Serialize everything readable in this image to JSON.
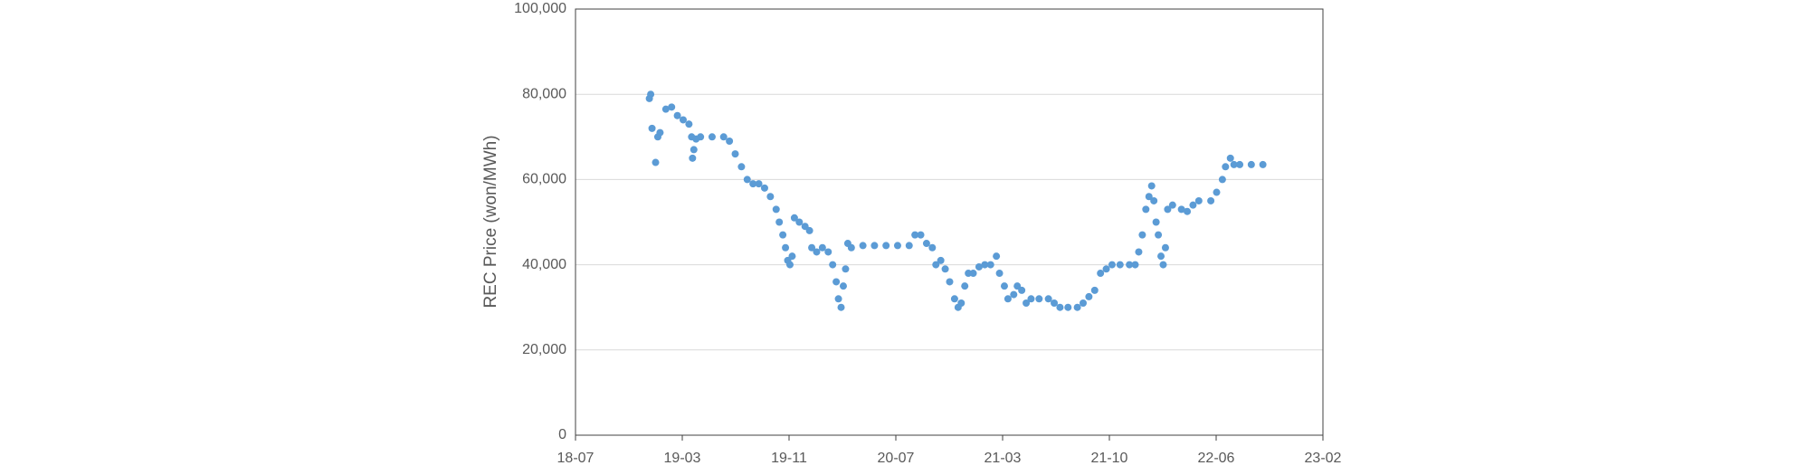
{
  "chart_data": {
    "type": "scatter",
    "y_label": "REC Price (won/MWh)",
    "color": "#5b9bd5",
    "grid": true,
    "xlim": [
      43300,
      44980
    ],
    "xticks": [
      {
        "value": 43300,
        "label": "18-07"
      },
      {
        "value": 43540,
        "label": "19-03"
      },
      {
        "value": 43780,
        "label": "19-11"
      },
      {
        "value": 44020,
        "label": "20-07"
      },
      {
        "value": 44260,
        "label": "21-03"
      },
      {
        "value": 44500,
        "label": "21-10"
      },
      {
        "value": 44740,
        "label": "22-06"
      },
      {
        "value": 44980,
        "label": "23-02"
      }
    ],
    "ylim": [
      0,
      100000
    ],
    "yticks": [
      0,
      {
        "value": 20000,
        "label": "20,000"
      },
      {
        "value": 40000,
        "label": "40,000"
      },
      {
        "value": 60000,
        "label": "60,000"
      },
      {
        "value": 80000,
        "label": "80,000"
      },
      {
        "value": 100000,
        "label": "100,000"
      }
    ],
    "x": [
      43466,
      43469,
      43472,
      43480,
      43485,
      43490,
      43503,
      43516,
      43529,
      43542,
      43555,
      43561,
      43563,
      43566,
      43571,
      43581,
      43607,
      43633,
      43646,
      43659,
      43673,
      43686,
      43699,
      43712,
      43725,
      43738,
      43751,
      43758,
      43766,
      43772,
      43777,
      43782,
      43787,
      43792,
      43803,
      43816,
      43826,
      43831,
      43842,
      43855,
      43868,
      43878,
      43886,
      43891,
      43897,
      43902,
      43907,
      43912,
      43920,
      43946,
      43972,
      43998,
      44024,
      44050,
      44063,
      44076,
      44089,
      44102,
      44110,
      44121,
      44131,
      44141,
      44152,
      44160,
      44167,
      44175,
      44183,
      44194,
      44207,
      44220,
      44233,
      44246,
      44253,
      44264,
      44272,
      44285,
      44293,
      44303,
      44313,
      44324,
      44342,
      44363,
      44376,
      44389,
      44407,
      44428,
      44441,
      44454,
      44467,
      44480,
      44493,
      44506,
      44524,
      44545,
      44558,
      44566,
      44574,
      44582,
      44589,
      44595,
      44600,
      44605,
      44610,
      44616,
      44621,
      44626,
      44631,
      44642,
      44662,
      44675,
      44688,
      44701,
      44728,
      44741,
      44754,
      44761,
      44772,
      44780,
      44793,
      44819,
      44845
    ],
    "values": [
      79000,
      80000,
      72000,
      64000,
      70000,
      71000,
      76500,
      77000,
      75000,
      74000,
      73000,
      70000,
      65000,
      67000,
      69500,
      70000,
      70000,
      70000,
      69000,
      66000,
      63000,
      60000,
      59000,
      59000,
      58000,
      56000,
      53000,
      50000,
      47000,
      44000,
      41000,
      40000,
      42000,
      51000,
      50000,
      49000,
      48000,
      44000,
      43000,
      44000,
      43000,
      40000,
      36000,
      32000,
      30000,
      35000,
      39000,
      45000,
      44000,
      44500,
      44500,
      44500,
      44500,
      44500,
      47000,
      47000,
      45000,
      44000,
      40000,
      41000,
      39000,
      36000,
      32000,
      30000,
      31000,
      35000,
      38000,
      38000,
      39500,
      40000,
      40000,
      42000,
      38000,
      35000,
      32000,
      33000,
      35000,
      34000,
      31000,
      32000,
      32000,
      32000,
      31000,
      30000,
      30000,
      30000,
      31000,
      32500,
      34000,
      38000,
      39000,
      40000,
      40000,
      40000,
      40000,
      43000,
      47000,
      53000,
      56000,
      58500,
      55000,
      50000,
      47000,
      42000,
      40000,
      44000,
      53000,
      54000,
      53000,
      52500,
      54000,
      55000,
      55000,
      57000,
      60000,
      63000,
      65000,
      63500,
      63500,
      63500,
      63500
    ]
  }
}
